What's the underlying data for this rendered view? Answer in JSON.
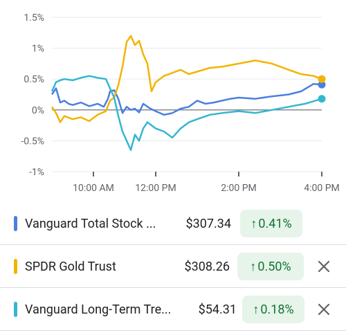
{
  "chart_data": {
    "type": "line",
    "y_ticks": [
      "1.5%",
      "1%",
      "0.5%",
      "0%",
      "-0.5%",
      "-1%"
    ],
    "y_values": [
      1.5,
      1.0,
      0.5,
      0.0,
      -0.5,
      -1.0
    ],
    "x_ticks": [
      "10:00 AM",
      "12:00 PM",
      "2:00 PM",
      "4:00 PM"
    ],
    "ylim": [
      -1.0,
      1.5
    ],
    "zero_line": true,
    "series": [
      {
        "name": "Vanguard Total Stock ...",
        "color": "#4a7fe0",
        "points": [
          [
            9.5,
            0.25
          ],
          [
            9.6,
            0.35
          ],
          [
            9.7,
            0.12
          ],
          [
            9.8,
            0.15
          ],
          [
            9.9,
            0.1
          ],
          [
            10.0,
            0.08
          ],
          [
            10.2,
            0.12
          ],
          [
            10.4,
            0.06
          ],
          [
            10.6,
            0.1
          ],
          [
            10.75,
            0.05
          ],
          [
            10.85,
            0.18
          ],
          [
            10.9,
            0.3
          ],
          [
            11.0,
            0.32
          ],
          [
            11.1,
            0.18
          ],
          [
            11.2,
            -0.05
          ],
          [
            11.3,
            0.05
          ],
          [
            11.4,
            0.0
          ],
          [
            11.5,
            0.02
          ],
          [
            11.6,
            -0.04
          ],
          [
            11.7,
            0.1
          ],
          [
            11.85,
            0.03
          ],
          [
            12.0,
            -0.02
          ],
          [
            12.2,
            -0.08
          ],
          [
            12.4,
            -0.05
          ],
          [
            12.6,
            0.02
          ],
          [
            12.8,
            0.05
          ],
          [
            13.0,
            0.15
          ],
          [
            13.2,
            0.1
          ],
          [
            13.4,
            0.12
          ],
          [
            13.6,
            0.15
          ],
          [
            13.8,
            0.18
          ],
          [
            14.0,
            0.2
          ],
          [
            14.4,
            0.18
          ],
          [
            14.8,
            0.22
          ],
          [
            15.2,
            0.25
          ],
          [
            15.5,
            0.3
          ],
          [
            15.8,
            0.42
          ],
          [
            16.0,
            0.41
          ]
        ]
      },
      {
        "name": "SPDR Gold Trust",
        "color": "#f2b400",
        "points": [
          [
            9.5,
            0.05
          ],
          [
            9.6,
            -0.05
          ],
          [
            9.7,
            -0.2
          ],
          [
            9.8,
            -0.1
          ],
          [
            10.0,
            -0.15
          ],
          [
            10.2,
            -0.12
          ],
          [
            10.4,
            -0.18
          ],
          [
            10.6,
            -0.08
          ],
          [
            10.8,
            -0.02
          ],
          [
            10.9,
            0.15
          ],
          [
            11.0,
            0.2
          ],
          [
            11.1,
            0.4
          ],
          [
            11.2,
            0.7
          ],
          [
            11.3,
            1.1
          ],
          [
            11.4,
            1.2
          ],
          [
            11.5,
            1.05
          ],
          [
            11.6,
            1.12
          ],
          [
            11.7,
            0.9
          ],
          [
            11.8,
            0.75
          ],
          [
            11.9,
            0.3
          ],
          [
            12.0,
            0.45
          ],
          [
            12.2,
            0.55
          ],
          [
            12.4,
            0.6
          ],
          [
            12.6,
            0.65
          ],
          [
            12.8,
            0.58
          ],
          [
            13.0,
            0.62
          ],
          [
            13.3,
            0.68
          ],
          [
            13.6,
            0.7
          ],
          [
            14.0,
            0.75
          ],
          [
            14.4,
            0.8
          ],
          [
            14.8,
            0.75
          ],
          [
            15.2,
            0.65
          ],
          [
            15.5,
            0.58
          ],
          [
            15.8,
            0.55
          ],
          [
            16.0,
            0.5
          ]
        ]
      },
      {
        "name": "Vanguard Long-Term Tre...",
        "color": "#35b6d0",
        "points": [
          [
            9.5,
            0.3
          ],
          [
            9.6,
            0.45
          ],
          [
            9.7,
            0.48
          ],
          [
            9.8,
            0.5
          ],
          [
            10.0,
            0.48
          ],
          [
            10.2,
            0.52
          ],
          [
            10.4,
            0.55
          ],
          [
            10.6,
            0.52
          ],
          [
            10.8,
            0.5
          ],
          [
            10.9,
            0.35
          ],
          [
            11.0,
            0.2
          ],
          [
            11.1,
            -0.1
          ],
          [
            11.2,
            -0.35
          ],
          [
            11.3,
            -0.5
          ],
          [
            11.4,
            -0.65
          ],
          [
            11.5,
            -0.4
          ],
          [
            11.6,
            -0.5
          ],
          [
            11.7,
            -0.3
          ],
          [
            11.8,
            -0.2
          ],
          [
            12.0,
            -0.3
          ],
          [
            12.2,
            -0.35
          ],
          [
            12.4,
            -0.45
          ],
          [
            12.6,
            -0.3
          ],
          [
            12.8,
            -0.2
          ],
          [
            13.0,
            -0.15
          ],
          [
            13.3,
            -0.08
          ],
          [
            13.6,
            -0.05
          ],
          [
            14.0,
            -0.02
          ],
          [
            14.4,
            -0.05
          ],
          [
            14.8,
            0.0
          ],
          [
            15.2,
            0.05
          ],
          [
            15.6,
            0.1
          ],
          [
            16.0,
            0.18
          ]
        ]
      }
    ]
  },
  "rows": [
    {
      "name": "Vanguard Total Stock ...",
      "price": "$307.34",
      "change": "0.41%",
      "color": "#4a7fe0",
      "removable": false
    },
    {
      "name": "SPDR Gold Trust",
      "price": "$308.26",
      "change": "0.50%",
      "color": "#f2b400",
      "removable": true
    },
    {
      "name": "Vanguard Long-Term Tre...",
      "price": "$54.31",
      "change": "0.18%",
      "color": "#35b6d0",
      "removable": true
    }
  ],
  "icons": {
    "change_arrow": "arrow-up-icon",
    "remove": "close-icon"
  },
  "colors": {
    "positive_bg": "#e6f4ea",
    "positive_fg": "#137333"
  }
}
